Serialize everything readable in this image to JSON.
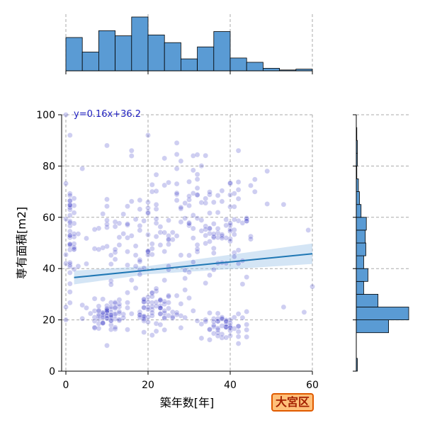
{
  "chart_data": {
    "type": "scatter",
    "title": "",
    "xlabel": "築年数[年]",
    "ylabel": "専有面積[m2]",
    "xlim": [
      0,
      60
    ],
    "ylim": [
      0,
      100
    ],
    "xticks": [
      0,
      20,
      40,
      60
    ],
    "yticks": [
      0,
      20,
      40,
      60,
      80,
      100
    ],
    "grid": true,
    "regression": {
      "label": "y=0.16x+36.2",
      "slope": 0.16,
      "intercept": 36.2
    },
    "badge": "大宮区",
    "top_histogram": {
      "bin_edges": [
        0,
        4,
        8,
        12,
        16,
        20,
        24,
        28,
        32,
        36,
        40,
        44,
        48,
        52,
        56,
        60
      ],
      "counts": [
        39,
        22,
        47,
        41,
        63,
        42,
        33,
        14,
        28,
        46,
        15,
        10,
        3,
        1,
        2
      ]
    },
    "right_histogram": {
      "bin_edges": [
        0,
        5,
        10,
        15,
        20,
        25,
        30,
        35,
        40,
        45,
        50,
        55,
        60,
        65,
        70,
        75,
        80,
        85,
        90,
        95,
        100
      ],
      "counts": [
        2,
        0,
        0,
        61,
        99,
        41,
        14,
        22,
        14,
        18,
        17,
        19,
        9,
        6,
        4,
        1,
        2,
        2,
        1,
        0
      ]
    },
    "points_sample": [
      {
        "x": 0,
        "y": 20
      },
      {
        "x": 0,
        "y": 25
      },
      {
        "x": 0,
        "y": 42
      },
      {
        "x": 0,
        "y": 100
      },
      {
        "x": 1,
        "y": 92
      },
      {
        "x": 4,
        "y": 79
      },
      {
        "x": 10,
        "y": 88
      },
      {
        "x": 16,
        "y": 86
      },
      {
        "x": 20,
        "y": 92
      },
      {
        "x": 27,
        "y": 89
      },
      {
        "x": 31,
        "y": 84
      },
      {
        "x": 42,
        "y": 86
      },
      {
        "x": 49,
        "y": 78
      },
      {
        "x": 53,
        "y": 65
      },
      {
        "x": 59,
        "y": 55
      },
      {
        "x": 60,
        "y": 33
      },
      {
        "x": 58,
        "y": 23
      },
      {
        "x": 53,
        "y": 25
      },
      {
        "x": 10,
        "y": 10
      },
      {
        "x": 38,
        "y": 13
      },
      {
        "x": 20,
        "y": 62
      },
      {
        "x": 21,
        "y": 70
      },
      {
        "x": 12,
        "y": 22
      },
      {
        "x": 24,
        "y": 21
      }
    ]
  }
}
